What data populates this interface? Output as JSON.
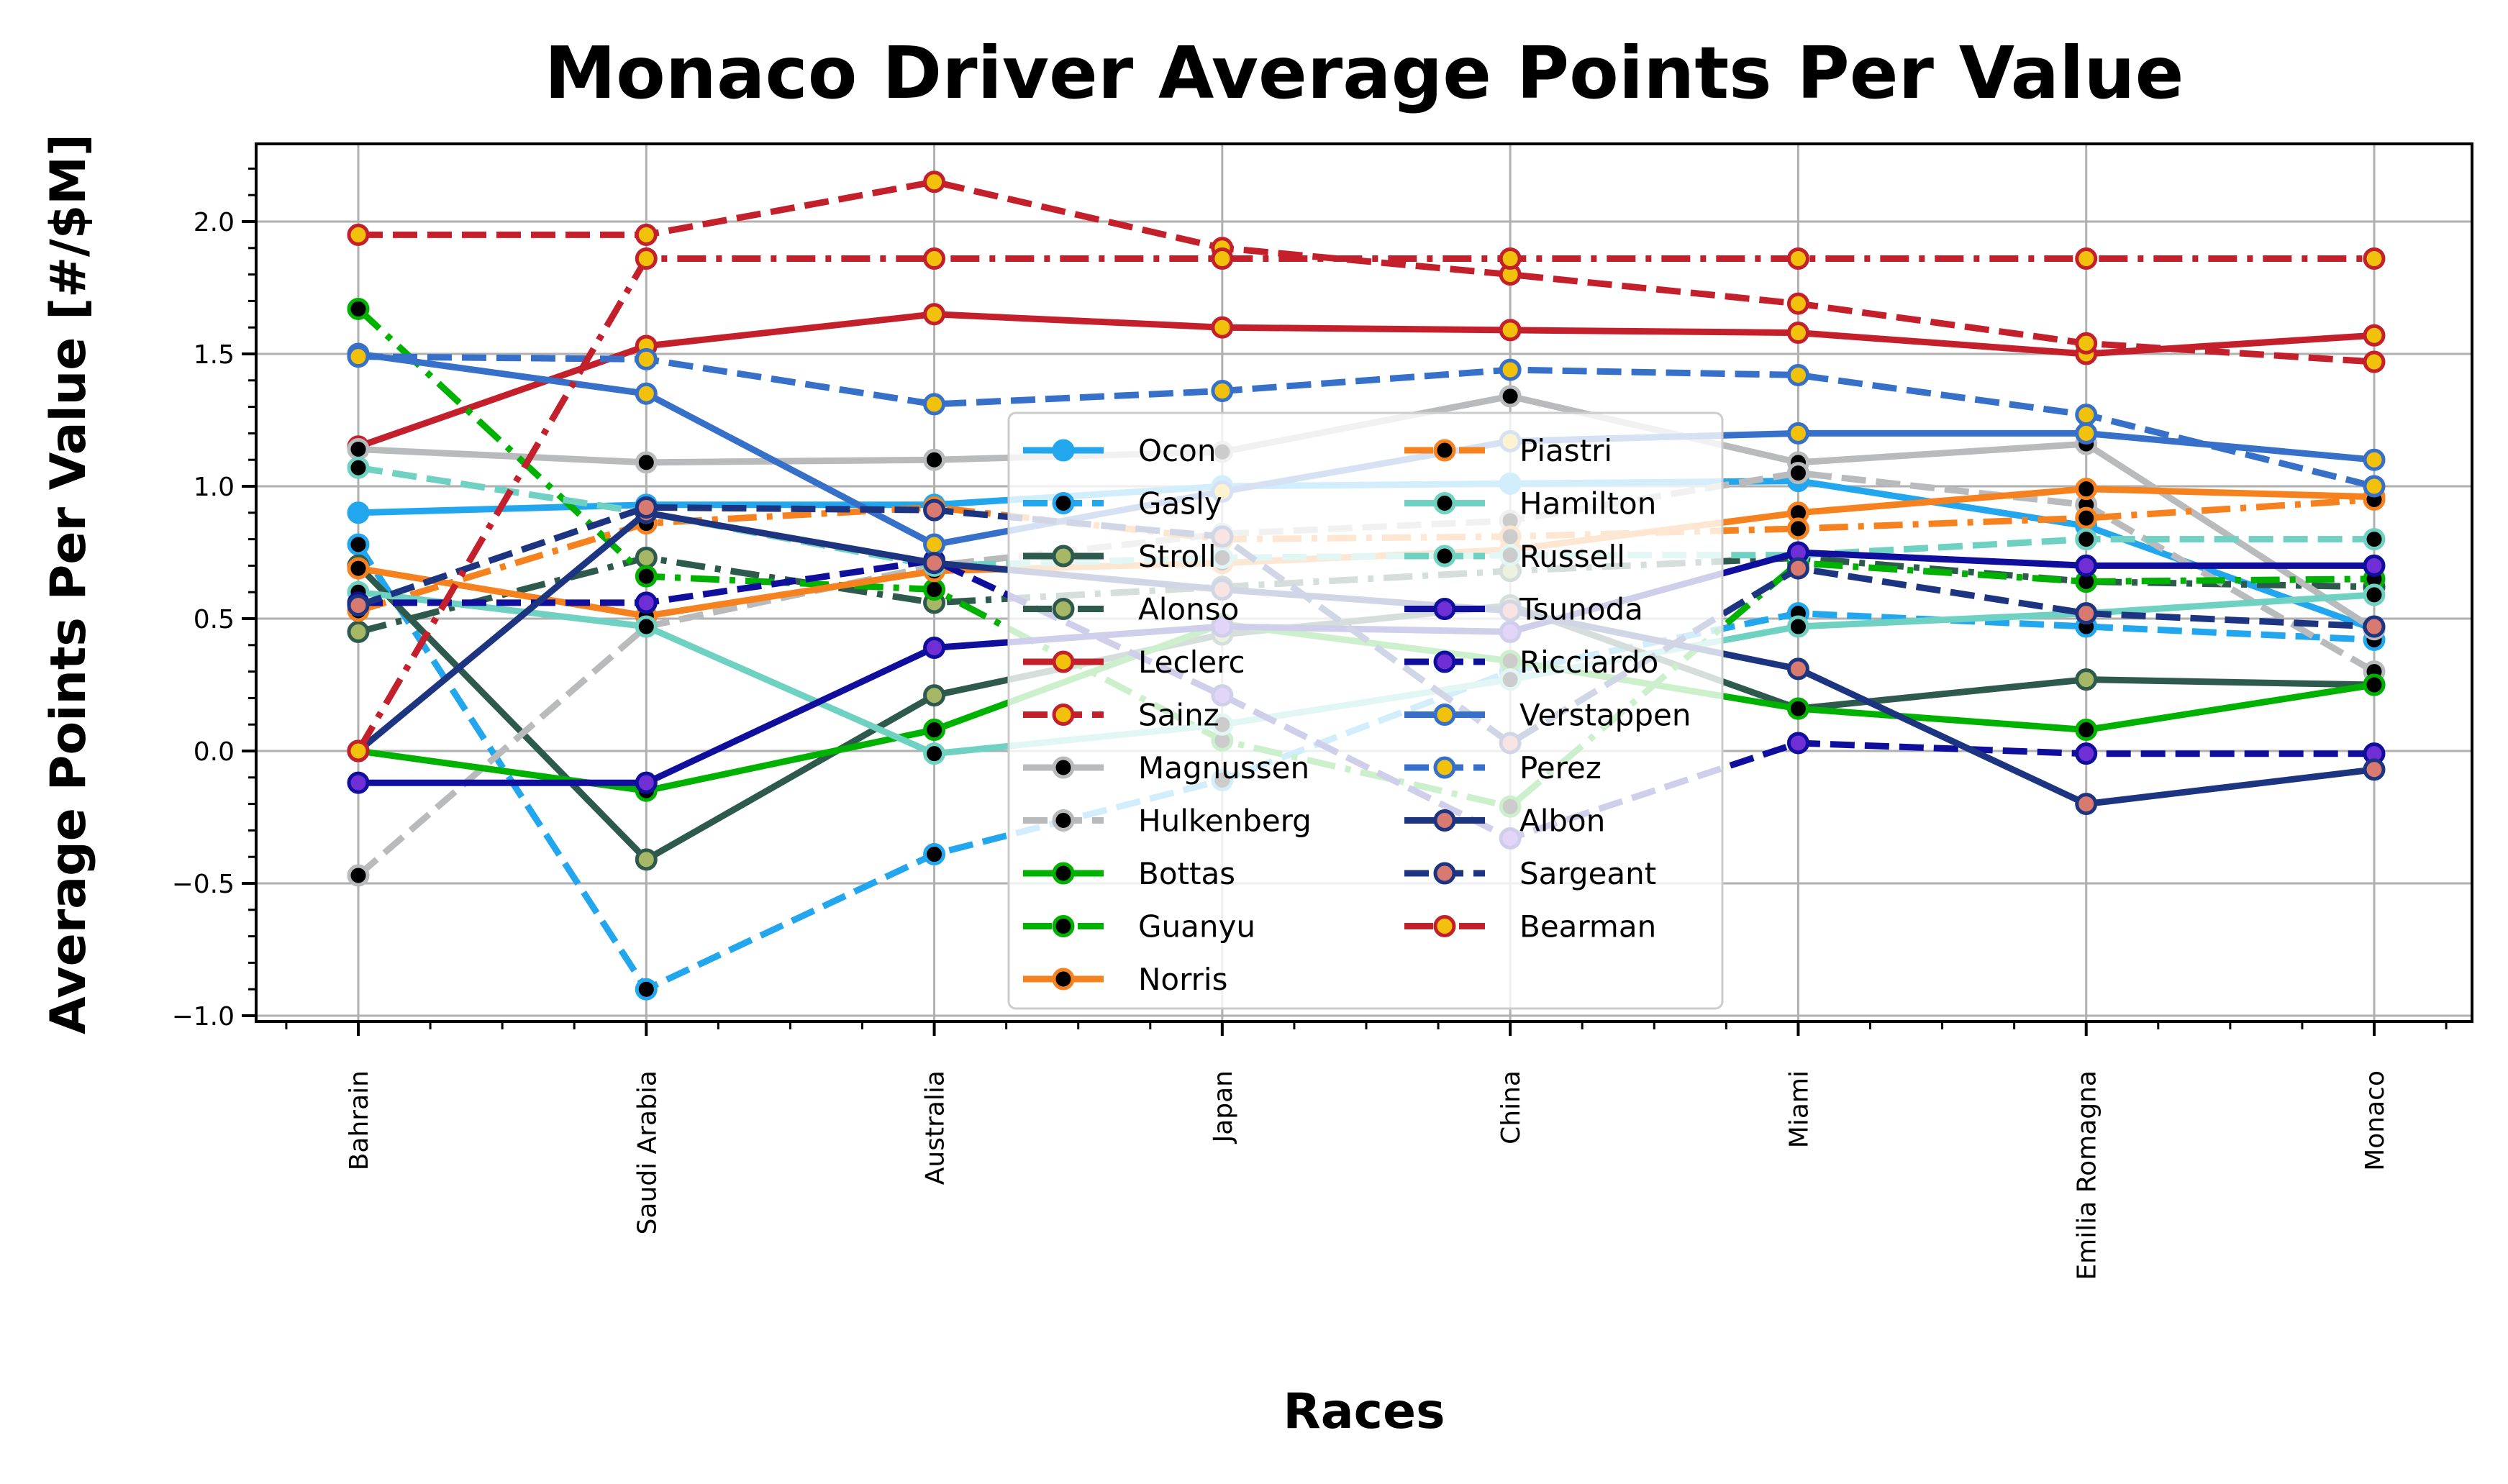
{
  "chart_data": {
    "type": "line",
    "title": "Monaco Driver Average Points Per Value",
    "xlabel": "Races",
    "ylabel": "Average Points Per Value [#/$M]",
    "categories": [
      "Bahrain",
      "Saudi Arabia",
      "Australia",
      "Japan",
      "China",
      "Miami",
      "Emilia Romagna",
      "Monaco"
    ],
    "ylim": [
      -1.05,
      2.3
    ],
    "yticks": [
      -1.0,
      -0.5,
      0.0,
      0.5,
      1.0,
      1.5,
      2.0
    ],
    "ytick_labels": [
      "−1.0",
      "−0.5",
      "0.0",
      "0.5",
      "1.0",
      "1.5",
      "2.0"
    ],
    "grid": true,
    "legend_position": "center",
    "series": [
      {
        "name": "Ocon",
        "style": "solid",
        "color": "#22a7ee",
        "marker_fill": "#22a7ee",
        "values": [
          0.9,
          0.93,
          0.93,
          1.0,
          1.01,
          1.02,
          0.85,
          0.46
        ]
      },
      {
        "name": "Gasly",
        "style": "dashed",
        "color": "#22a7ee",
        "marker_fill": "#000000",
        "values": [
          0.78,
          -0.9,
          -0.39,
          -0.11,
          0.3,
          0.52,
          0.47,
          0.42
        ]
      },
      {
        "name": "Stroll",
        "style": "solid",
        "color": "#2e5a4d",
        "marker_fill": "#a6b866",
        "values": [
          0.7,
          -0.41,
          0.21,
          0.44,
          0.55,
          0.16,
          0.27,
          0.25
        ]
      },
      {
        "name": "Alonso",
        "style": "dashdot",
        "color": "#2e5a4d",
        "marker_fill": "#a6b866",
        "values": [
          0.45,
          0.73,
          0.56,
          0.62,
          0.68,
          0.73,
          0.64,
          0.62
        ]
      },
      {
        "name": "Leclerc",
        "style": "solid",
        "color": "#c4202c",
        "marker_fill": "#f2c10c",
        "values": [
          1.15,
          1.53,
          1.65,
          1.6,
          1.59,
          1.58,
          1.5,
          1.57
        ]
      },
      {
        "name": "Sainz",
        "style": "dashed",
        "color": "#c4202c",
        "marker_fill": "#f2c10c",
        "values": [
          1.95,
          1.95,
          2.15,
          1.9,
          1.8,
          1.69,
          1.54,
          1.47
        ]
      },
      {
        "name": "Magnussen",
        "style": "solid",
        "color": "#b8babb",
        "marker_fill": "#000000",
        "values": [
          1.14,
          1.09,
          1.1,
          1.13,
          1.34,
          1.09,
          1.16,
          0.46
        ]
      },
      {
        "name": "Hulkenberg",
        "style": "dashed",
        "color": "#b8babb",
        "marker_fill": "#000000",
        "values": [
          -0.47,
          0.47,
          0.7,
          0.82,
          0.87,
          1.05,
          0.93,
          0.3
        ]
      },
      {
        "name": "Bottas",
        "style": "solid",
        "color": "#00b200",
        "marker_fill": "#000000",
        "values": [
          0.0,
          -0.15,
          0.08,
          0.48,
          0.34,
          0.16,
          0.08,
          0.25
        ]
      },
      {
        "name": "Guanyu",
        "style": "dashdot",
        "color": "#00b200",
        "marker_fill": "#000000",
        "values": [
          1.67,
          0.66,
          0.61,
          0.04,
          -0.21,
          0.71,
          0.64,
          0.65
        ]
      },
      {
        "name": "Norris",
        "style": "solid",
        "color": "#f5821f",
        "marker_fill": "#000000",
        "values": [
          0.69,
          0.51,
          0.68,
          0.71,
          0.76,
          0.9,
          0.99,
          0.96
        ]
      },
      {
        "name": "Piastri",
        "style": "dashdot",
        "color": "#f5821f",
        "marker_fill": "#000000",
        "values": [
          0.53,
          0.86,
          0.92,
          0.8,
          0.81,
          0.84,
          0.88,
          0.95
        ]
      },
      {
        "name": "Hamilton",
        "style": "solid",
        "color": "#6fd1c1",
        "marker_fill": "#000000",
        "values": [
          0.6,
          0.47,
          -0.01,
          0.1,
          0.27,
          0.47,
          0.52,
          0.59
        ]
      },
      {
        "name": "Russell",
        "style": "dashed",
        "color": "#6fd1c1",
        "marker_fill": "#000000",
        "values": [
          1.07,
          0.9,
          0.7,
          0.73,
          0.74,
          0.74,
          0.8,
          0.8
        ]
      },
      {
        "name": "Tsunoda",
        "style": "solid",
        "color": "#100e9c",
        "marker_fill": "#6f2fd5",
        "values": [
          -0.12,
          -0.12,
          0.39,
          0.47,
          0.45,
          0.75,
          0.7,
          0.7
        ]
      },
      {
        "name": "Ricciardo",
        "style": "dashed",
        "color": "#100e9c",
        "marker_fill": "#6f2fd5",
        "values": [
          0.56,
          0.56,
          0.72,
          0.21,
          -0.33,
          0.03,
          -0.01,
          -0.01
        ]
      },
      {
        "name": "Verstappen",
        "style": "solid",
        "color": "#3670c9",
        "marker_fill": "#f2c10c",
        "values": [
          1.5,
          1.35,
          0.78,
          0.98,
          1.17,
          1.2,
          1.2,
          1.1
        ]
      },
      {
        "name": "Perez",
        "style": "dashed",
        "color": "#3670c9",
        "marker_fill": "#f2c10c",
        "values": [
          1.49,
          1.48,
          1.31,
          1.36,
          1.44,
          1.42,
          1.27,
          1.0
        ]
      },
      {
        "name": "Albon",
        "style": "solid",
        "color": "#1d3481",
        "marker_fill": "#d97a70",
        "values": [
          0.0,
          0.9,
          0.71,
          0.61,
          0.53,
          0.31,
          -0.2,
          -0.07
        ]
      },
      {
        "name": "Sargeant",
        "style": "dashed",
        "color": "#1d3481",
        "marker_fill": "#d97a70",
        "values": [
          0.55,
          0.92,
          0.91,
          0.81,
          0.03,
          0.69,
          0.52,
          0.47
        ]
      },
      {
        "name": "Bearman",
        "style": "dashdot",
        "color": "#c4202c",
        "marker_fill": "#f2c10c",
        "values": [
          0.0,
          1.86,
          1.86,
          1.86,
          1.86,
          1.86,
          1.86,
          1.86
        ]
      }
    ]
  }
}
